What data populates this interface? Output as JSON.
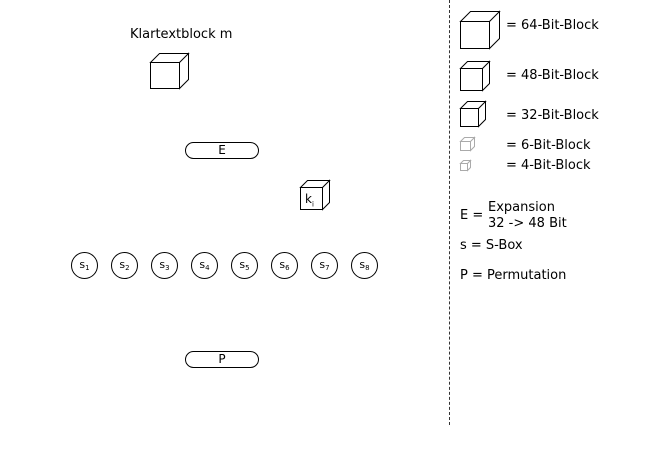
{
  "diagram": {
    "plaintext_label": "Klartextblock m",
    "expansion_label": "E",
    "key_label": "k",
    "key_subscript": "i",
    "sbox_letter": "s",
    "sboxes": [
      "1",
      "2",
      "3",
      "4",
      "5",
      "6",
      "7",
      "8"
    ],
    "permutation_label": "P"
  },
  "legend": {
    "blocks": [
      {
        "icon": "cube-64-bit-icon",
        "label": "= 64-Bit-Block"
      },
      {
        "icon": "cube-48-bit-icon",
        "label": "= 48-Bit-Block"
      },
      {
        "icon": "cube-32-bit-icon",
        "label": "= 32-Bit-Block"
      },
      {
        "icon": "cube-6-bit-icon",
        "label": "= 6-Bit-Block"
      },
      {
        "icon": "cube-4-bit-icon",
        "label": "= 4-Bit-Block"
      }
    ],
    "expansion_key": "E =",
    "expansion_line1": "Expansion",
    "expansion_line2": "32 -> 48 Bit",
    "sbox_def": "s = S-Box",
    "permutation_def": "P = Permutation"
  }
}
